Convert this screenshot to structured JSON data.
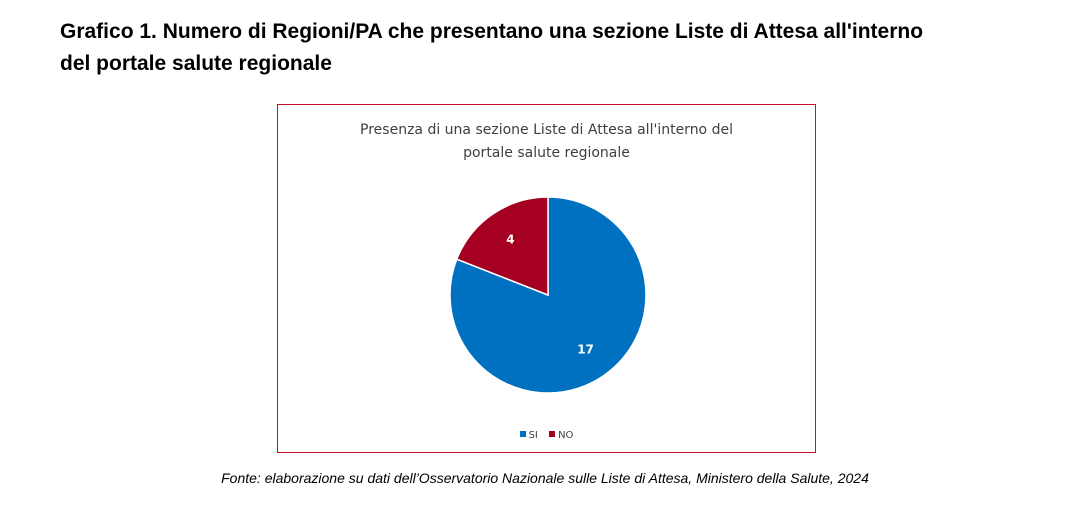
{
  "heading": {
    "line1": "Grafico 1. Numero di Regioni/PA che presentano una sezione Liste di Attesa all'interno",
    "line2": "del portale salute regionale"
  },
  "source": "Fonte: elaborazione su dati dell’Osservatorio Nazionale sulle Liste di Attesa, Ministero della Salute, 2024",
  "colors": {
    "si": "#0070c0",
    "no": "#a50021",
    "frame": "#c8102e"
  },
  "chart_data": {
    "type": "pie",
    "title_lines": [
      "Presenza di una sezione Liste di Attesa all'interno del",
      "portale salute regionale"
    ],
    "categories": [
      "SI",
      "NO"
    ],
    "values": [
      17,
      4
    ],
    "data_labels": [
      "17",
      "4"
    ],
    "legend_position": "bottom",
    "start_angle_deg": 0,
    "direction": "clockwise"
  }
}
